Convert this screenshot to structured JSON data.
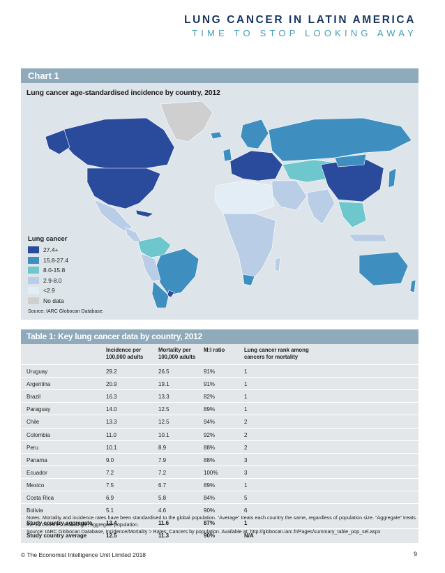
{
  "header": {
    "title": "LUNG CANCER IN LATIN AMERICA",
    "subtitle": "TIME TO STOP LOOKING AWAY"
  },
  "chart": {
    "label": "Chart 1",
    "title": "Lung cancer age-standardised incidence by country, 2012",
    "source": "Source: IARC Globocan Database.",
    "legend_title": "Lung cancer",
    "legend": [
      {
        "label": "27.4+",
        "color": "#2a4a9c"
      },
      {
        "label": "15.8-27.4",
        "color": "#3e8fc0"
      },
      {
        "label": "8.0-15.8",
        "color": "#6ec7cc"
      },
      {
        "label": "2.9-8.0",
        "color": "#b9cde6"
      },
      {
        "label": "<2.9",
        "color": "#e2edf6"
      },
      {
        "label": "No data",
        "color": "#cfcfcf"
      }
    ]
  },
  "table": {
    "title": "Table 1: Key lung cancer data by country, 2012",
    "headers": [
      "Incidence per 100,000 adults",
      "Mortality per 100,000 adults",
      "M:I ratio",
      "Lung cancer rank among cancers for mortality"
    ],
    "rows": [
      [
        "Uruguay",
        "29.2",
        "26.5",
        "91%",
        "1"
      ],
      [
        "Argentina",
        "20.9",
        "19.1",
        "91%",
        "1"
      ],
      [
        "Brazil",
        "16.3",
        "13.3",
        "82%",
        "1"
      ],
      [
        "Paraguay",
        "14.0",
        "12.5",
        "89%",
        "1"
      ],
      [
        "Chile",
        "13.3",
        "12.5",
        "94%",
        "2"
      ],
      [
        "Colombia",
        "11.0",
        "10.1",
        "92%",
        "2"
      ],
      [
        "Peru",
        "10.1",
        "8.9",
        "88%",
        "2"
      ],
      [
        "Panama",
        "9.0",
        "7.9",
        "88%",
        "3"
      ],
      [
        "Ecuador",
        "7.2",
        "7.2",
        "100%",
        "3"
      ],
      [
        "Mexico",
        "7.5",
        "6.7",
        "89%",
        "1"
      ],
      [
        "Costa Rica",
        "6.9",
        "5.8",
        "84%",
        "5"
      ],
      [
        "Bolivia",
        "5.1",
        "4.6",
        "90%",
        "6"
      ],
      [
        "Study country aggregate",
        "13.4",
        "11.6",
        "87%",
        "1"
      ],
      [
        "Study country average",
        "12.5",
        "11.3",
        "90%",
        "N/A"
      ]
    ],
    "notes": "Notes: Mortality and incidence rates have been standardised to the global population. “Average” treats each country the same, regardless of population size. “Aggregate” treats the 12 countries as a single, aggregate population.",
    "source": "Source: IARC Globocan Database, Incidence/Mortality > Rates: Cancers by population. Available at: http://globocan.iarc.fr/Pages/summary_table_pop_sel.aspx"
  },
  "footer": {
    "copyright": "© The Economist Intelligence Unit Limited 2018",
    "page": "9"
  }
}
